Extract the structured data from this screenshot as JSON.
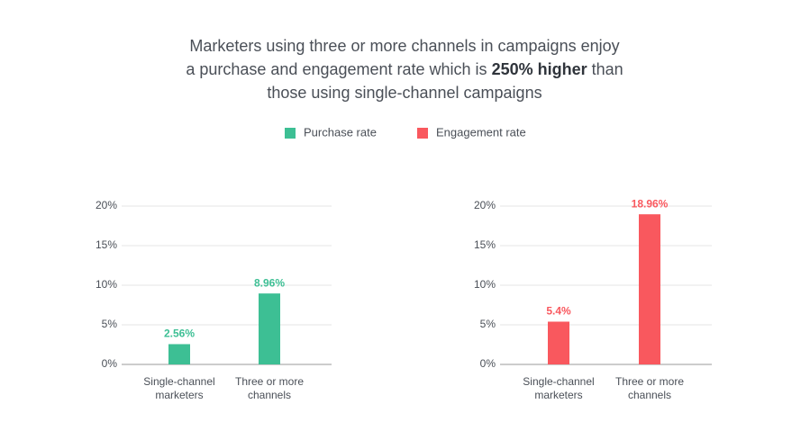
{
  "title": [
    "Marketers using three or more channels in campaigns enjoy a purchase and engagement rate which is ",
    "250% higher",
    " than those using single-channel campaigns"
  ],
  "chart_data": [
    {
      "type": "bar",
      "categories": [
        "Single-channel marketers",
        "Three or more channels"
      ],
      "series": [
        {
          "name": "Purchase rate",
          "color": "#3dbf94",
          "values": [
            2.56,
            8.96
          ],
          "value_labels": [
            "2.56%",
            "8.96%"
          ]
        }
      ],
      "ylim": [
        0,
        20
      ],
      "yticks": [
        {
          "value": 0,
          "label": "0%"
        },
        {
          "value": 5,
          "label": "5%"
        },
        {
          "value": 10,
          "label": "10%"
        },
        {
          "value": 15,
          "label": "15%"
        },
        {
          "value": 20,
          "label": "20%"
        }
      ],
      "grid": true
    },
    {
      "type": "bar",
      "categories": [
        "Single-channel marketers",
        "Three or more channels"
      ],
      "series": [
        {
          "name": "Engagement rate",
          "color": "#f9585e",
          "values": [
            5.4,
            18.96
          ],
          "value_labels": [
            "5.4%",
            "18.96%"
          ]
        }
      ],
      "ylim": [
        0,
        20
      ],
      "yticks": [
        {
          "value": 0,
          "label": "0%"
        },
        {
          "value": 5,
          "label": "5%"
        },
        {
          "value": 10,
          "label": "10%"
        },
        {
          "value": 15,
          "label": "15%"
        },
        {
          "value": 20,
          "label": "20%"
        }
      ],
      "grid": true
    }
  ]
}
